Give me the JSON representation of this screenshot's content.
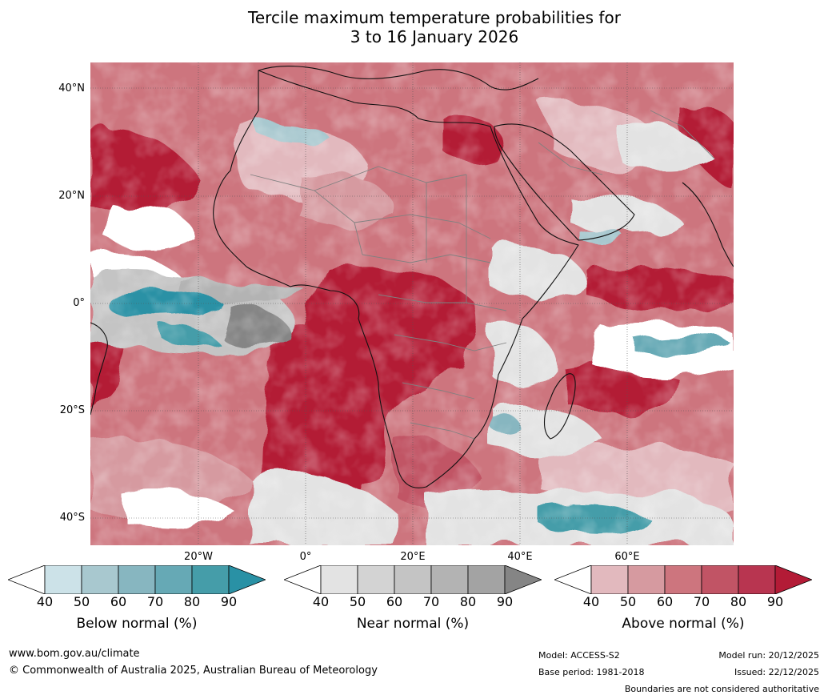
{
  "title_line1": "Tercile maximum temperature probabilities for",
  "title_line2": "3 to 16 January 2026",
  "map": {
    "region": "Africa",
    "latitude_labels": [
      "40°N",
      "20°N",
      "0°",
      "20°S",
      "40°S"
    ],
    "longitude_labels": [
      "20°W",
      "0°",
      "20°E",
      "40°E",
      "60°E"
    ],
    "features": [
      "Africa",
      "Madagascar",
      "Arabian Peninsula",
      "India",
      "Europe",
      "Atlantic Ocean",
      "Indian Ocean"
    ],
    "colors": {
      "above_dominant": "#b31b36",
      "near_normal": "#8e8e8e",
      "below_normal": "#2d8fa3",
      "background_land": "#e5e5e5"
    }
  },
  "colorbars": [
    {
      "title": "Below normal (%)",
      "ticks": [
        "40",
        "50",
        "60",
        "70",
        "80",
        "90"
      ],
      "colors": [
        "#ffffff",
        "#cce2e8",
        "#a8c8cf",
        "#87b6c0",
        "#66a9b5",
        "#459da9",
        "#2991a5"
      ]
    },
    {
      "title": "Near normal (%)",
      "ticks": [
        "40",
        "50",
        "60",
        "70",
        "80",
        "90"
      ],
      "colors": [
        "#ffffff",
        "#e3e3e3",
        "#d3d3d3",
        "#c4c4c4",
        "#b3b3b3",
        "#a3a3a3",
        "#858585"
      ]
    },
    {
      "title": "Above normal (%)",
      "ticks": [
        "40",
        "50",
        "60",
        "70",
        "80",
        "90"
      ],
      "colors": [
        "#ffffff",
        "#e2b9be",
        "#d69aa0",
        "#cd757e",
        "#c15465",
        "#b83550",
        "#b31b36"
      ]
    }
  ],
  "footer": {
    "website": "www.bom.gov.au/climate",
    "copyright": "© Commonwealth of Australia 2025, Australian Bureau of Meteorology",
    "model": "Model: ACCESS-S2",
    "base_period": "Base period: 1981-2018",
    "model_run": "Model run: 20/12/2025",
    "issued": "Issued: 22/12/2025",
    "disclaimer": "Boundaries are not considered authoritative"
  }
}
